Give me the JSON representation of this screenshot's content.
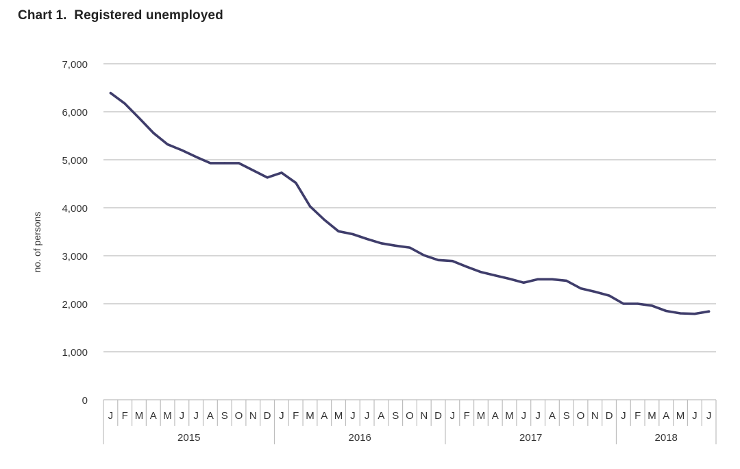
{
  "chart_data": {
    "type": "line",
    "title": "Chart 1.  Registered unemployed",
    "ylabel": "no. of persons",
    "xlabel": "",
    "ylim": [
      0,
      7000
    ],
    "y_ticks": [
      "0",
      "1,000",
      "2,000",
      "3,000",
      "4,000",
      "5,000",
      "6,000",
      "7,000"
    ],
    "grid": true,
    "years": [
      "2015",
      "2016",
      "2017",
      "2018"
    ],
    "months": [
      "J",
      "F",
      "M",
      "A",
      "M",
      "J",
      "J",
      "A",
      "S",
      "O",
      "N",
      "D",
      "J",
      "F",
      "M",
      "A",
      "M",
      "J",
      "J",
      "A",
      "S",
      "O",
      "N",
      "D",
      "J",
      "F",
      "M",
      "A",
      "M",
      "J",
      "J",
      "A",
      "S",
      "O",
      "N",
      "D",
      "J",
      "F",
      "M",
      "A",
      "M",
      "J",
      "J"
    ],
    "series": [
      {
        "color": "#3f3d6b",
        "values": [
          6390,
          6170,
          5870,
          5560,
          5320,
          5200,
          5060,
          4930,
          4930,
          4930,
          4780,
          4630,
          4730,
          4520,
          4030,
          3750,
          3510,
          3450,
          3350,
          3260,
          3210,
          3170,
          3010,
          2910,
          2890,
          2770,
          2660,
          2590,
          2520,
          2440,
          2510,
          2510,
          2480,
          2320,
          2250,
          2170,
          2000,
          2000,
          1960,
          1850,
          1800,
          1790,
          1840
        ]
      }
    ]
  }
}
